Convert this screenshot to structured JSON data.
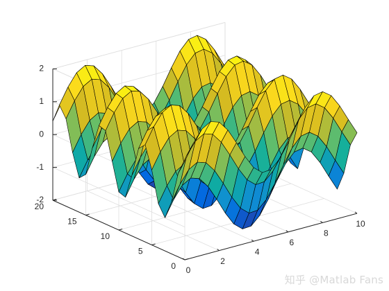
{
  "chart_data": {
    "type": "surface",
    "surface_function": "z = sin(x) + cos(y)",
    "x_grid": {
      "start": 0,
      "stop": 10,
      "step": 0.5
    },
    "y_grid": {
      "start": 0,
      "stop": 20,
      "step": 1
    },
    "xlim": [
      0,
      10
    ],
    "ylim": [
      0,
      20
    ],
    "zlim": [
      -2,
      2
    ],
    "x_ticks": [
      0,
      2,
      4,
      6,
      8,
      10
    ],
    "y_ticks": [
      0,
      5,
      10,
      15,
      20
    ],
    "z_ticks": [
      -2,
      -1,
      0,
      1,
      2
    ],
    "colormap": "parula",
    "colormap_stops": [
      "#352a87",
      "#0268e1",
      "#108ed2",
      "#0fae9f",
      "#65be69",
      "#d5bb21",
      "#fbd81d",
      "#f9fb0e"
    ],
    "edge_color": "#000000",
    "grid": true,
    "box": true,
    "title": "",
    "xlabel": "",
    "ylabel": "",
    "zlabel": ""
  },
  "watermark": "知乎 @Matlab Fans"
}
